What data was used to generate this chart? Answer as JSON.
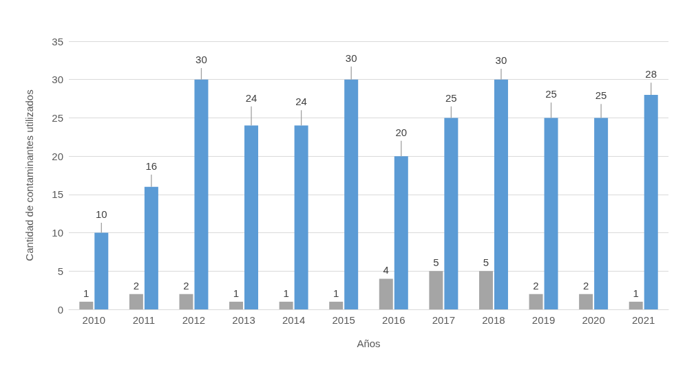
{
  "chart_data": {
    "type": "bar",
    "xlabel": "Años",
    "ylabel": "Cantidad de contaminantes utilizados",
    "categories": [
      "2010",
      "2011",
      "2012",
      "2013",
      "2014",
      "2015",
      "2016",
      "2017",
      "2018",
      "2019",
      "2020",
      "2021"
    ],
    "series": [
      {
        "color": "#a5a5a5",
        "values": [
          1,
          2,
          2,
          1,
          1,
          1,
          4,
          5,
          5,
          2,
          2,
          1
        ]
      },
      {
        "color": "#5b9bd5",
        "values": [
          10,
          16,
          30,
          24,
          24,
          30,
          20,
          25,
          30,
          25,
          25,
          28
        ],
        "errors": [
          [
            10,
            11.3
          ],
          [
            16,
            17.6
          ],
          [
            30,
            31.5
          ],
          [
            24,
            26.5
          ],
          [
            24,
            26
          ],
          [
            30,
            31.7
          ],
          [
            20,
            22
          ],
          [
            25,
            26.5
          ],
          [
            30,
            31.4
          ],
          [
            25,
            27
          ],
          [
            25,
            26.8
          ],
          [
            28,
            29.6
          ]
        ]
      }
    ],
    "ylim": [
      0,
      35
    ],
    "yticks": [
      0,
      5,
      10,
      15,
      20,
      25,
      30,
      35
    ],
    "grid": "y",
    "data_labels": true
  }
}
